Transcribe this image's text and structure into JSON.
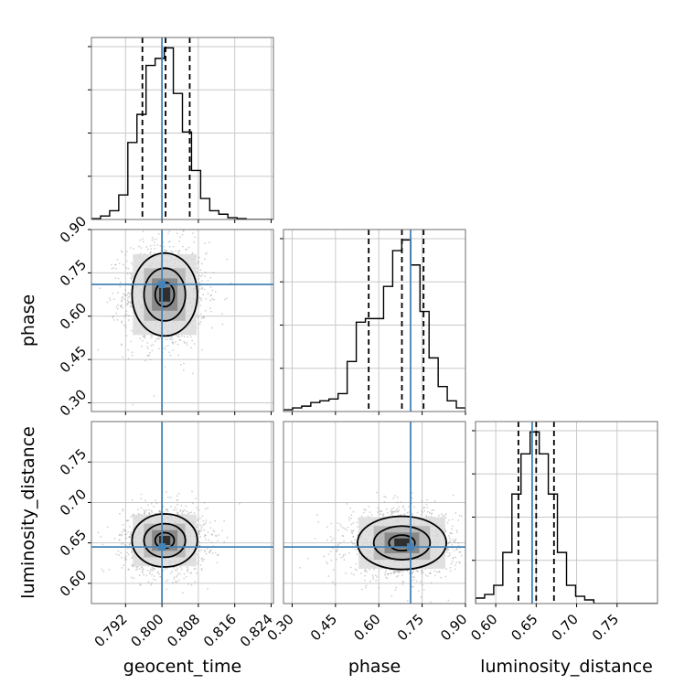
{
  "chart_data": {
    "type": "corner",
    "parameters": [
      "geocent_time",
      "phase",
      "luminosity_distance"
    ],
    "truths": [
      0.8,
      0.71,
      0.645
    ],
    "axes": {
      "geocent_time": {
        "range": [
          0.7845,
          0.8245
        ],
        "ticks": [
          0.792,
          0.8,
          0.808,
          0.816,
          0.824
        ],
        "tick_labels": [
          "0.792",
          "0.800",
          "0.808",
          "0.816",
          "0.824"
        ]
      },
      "phase": {
        "range": [
          0.27,
          0.9
        ],
        "ticks": [
          0.3,
          0.45,
          0.6,
          0.75,
          0.9
        ],
        "tick_labels": [
          "0.30",
          "0.45",
          "0.60",
          "0.75",
          "0.90"
        ]
      },
      "luminosity_distance": {
        "range": [
          0.575,
          0.8
        ],
        "ticks": [
          0.6,
          0.65,
          0.7,
          0.75
        ],
        "tick_labels": [
          "0.60",
          "0.65",
          "0.70",
          "0.75"
        ]
      }
    },
    "histograms": {
      "geocent_time": {
        "bin_edges": [
          0.7845,
          0.7865,
          0.7885,
          0.7905,
          0.7925,
          0.7945,
          0.7965,
          0.7985,
          0.8005,
          0.8025,
          0.8045,
          0.8065,
          0.8085,
          0.8105,
          0.8125,
          0.8145,
          0.8165,
          0.8185,
          0.8205,
          0.8225,
          0.8245
        ],
        "counts": [
          0.005,
          0.02,
          0.05,
          0.14,
          0.44,
          0.6,
          0.88,
          0.92,
          0.98,
          0.72,
          0.5,
          0.28,
          0.12,
          0.05,
          0.03,
          0.01,
          0.005,
          0.0,
          0.0,
          0.0
        ],
        "quantiles": [
          0.7957,
          0.8008,
          0.8061
        ]
      },
      "phase": {
        "bin_edges": [
          0.27,
          0.3015,
          0.333,
          0.3645,
          0.396,
          0.4275,
          0.459,
          0.4905,
          0.522,
          0.5535,
          0.585,
          0.6165,
          0.648,
          0.6795,
          0.711,
          0.7425,
          0.774,
          0.8055,
          0.837,
          0.8685,
          0.9
        ],
        "counts": [
          0.01,
          0.02,
          0.03,
          0.05,
          0.06,
          0.07,
          0.1,
          0.28,
          0.5,
          0.52,
          0.52,
          0.7,
          0.9,
          0.96,
          0.82,
          0.56,
          0.3,
          0.14,
          0.06,
          0.02
        ],
        "quantiles": [
          0.565,
          0.68,
          0.755
        ]
      },
      "luminosity_distance": {
        "bin_edges": [
          0.575,
          0.58625,
          0.5975,
          0.60875,
          0.62,
          0.63125,
          0.6425,
          0.65375,
          0.665,
          0.67625,
          0.6875,
          0.69875,
          0.71,
          0.72125,
          0.7325,
          0.74375,
          0.755,
          0.76625,
          0.7775,
          0.78875,
          0.8
        ],
        "counts": [
          0.03,
          0.05,
          0.1,
          0.28,
          0.6,
          0.82,
          0.94,
          0.82,
          0.6,
          0.28,
          0.1,
          0.04,
          0.02,
          0.0,
          0.0,
          0.0,
          0.0,
          0.0,
          0.0,
          0.0
        ],
        "quantiles": [
          0.628,
          0.65,
          0.672
        ]
      }
    },
    "posterior_2d": {
      "geocent_time|phase": {
        "mean": [
          0.8006,
          0.675
        ],
        "sd": [
          0.0035,
          0.07
        ],
        "contour_levels": [
          0.39,
          0.86,
          0.99
        ]
      },
      "geocent_time|luminosity_distance": {
        "mean": [
          0.8006,
          0.653
        ],
        "sd": [
          0.0035,
          0.016
        ],
        "contour_levels": [
          0.39,
          0.86,
          0.99
        ]
      },
      "phase|luminosity_distance": {
        "mean": [
          0.68,
          0.65
        ],
        "sd": [
          0.075,
          0.016
        ],
        "contour_levels": [
          0.39,
          0.86,
          0.99
        ]
      }
    },
    "grid": true,
    "colors": {
      "hist": "#000000",
      "truth": "#4682b4",
      "points": "#9a9a9a",
      "grid": "#c8c8c8"
    }
  }
}
